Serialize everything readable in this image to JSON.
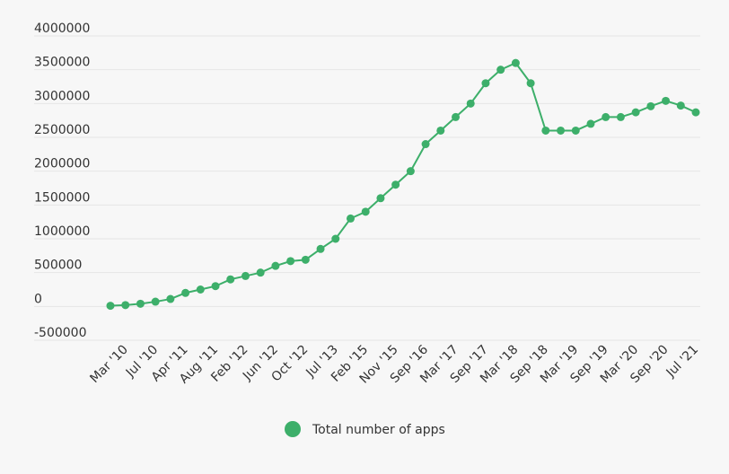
{
  "chart_data": {
    "type": "line",
    "categories": [
      "Mar '10",
      null,
      "Jul '10",
      null,
      "Apr '11",
      null,
      "Aug '11",
      null,
      "Feb '12",
      null,
      "Jun '12",
      null,
      "Oct '12",
      null,
      "Jul '13",
      null,
      "Feb '15",
      null,
      "Nov '15",
      null,
      "Sep '16",
      null,
      "Mar '17",
      null,
      "Sep '17",
      null,
      "Mar '18",
      null,
      "Sep '18",
      null,
      "Mar '19",
      null,
      "Sep '19",
      null,
      "Mar '20",
      null,
      "Sep '20",
      null,
      "Jul '21",
      null
    ],
    "series": [
      {
        "name": "Total number of apps",
        "color": "#3daf6a",
        "values": [
          10000,
          20000,
          40000,
          70000,
          110000,
          200000,
          250000,
          300000,
          400000,
          450000,
          500000,
          600000,
          670000,
          690000,
          850000,
          1000000,
          1300000,
          1400000,
          1600000,
          1800000,
          2000000,
          2400000,
          2600000,
          2800000,
          3000000,
          3300000,
          3500000,
          3600000,
          3300000,
          2600000,
          2600000,
          2600000,
          2700000,
          2800000,
          2800000,
          2870000,
          2960000,
          3040000,
          2970000,
          2870000
        ]
      }
    ],
    "ylim": [
      -500000,
      4000000
    ],
    "yticks": [
      -500000,
      0,
      500000,
      1000000,
      1500000,
      2000000,
      2500000,
      3000000,
      3500000,
      4000000
    ],
    "grid": true
  }
}
